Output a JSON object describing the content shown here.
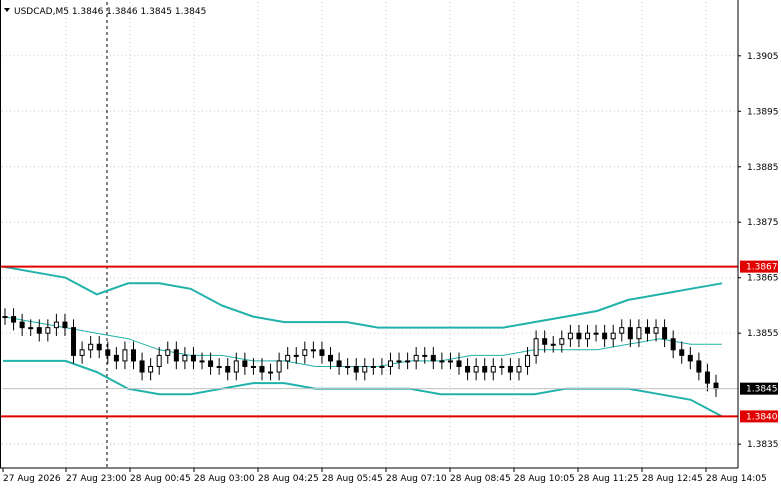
{
  "header": {
    "title": "USDCAD,M5  1.3846 1.3846 1.3845 1.3845"
  },
  "colors": {
    "background": "#ffffff",
    "grid": "#c8c8c8",
    "candles": "#000000",
    "bands": "#20b2aa",
    "level_lines": "#e00000",
    "price_badge": "#000000"
  },
  "chart_data": {
    "type": "line",
    "symbol": "USDCAD",
    "timeframe": "M5",
    "ohlc_header": [
      1.3846,
      1.3846,
      1.3845,
      1.3845
    ],
    "x_tick_labels": [
      "27 Aug 2026",
      "27 Aug 23:00",
      "28 Aug 00:45",
      "28 Aug 03:00",
      "28 Aug 04:25",
      "28 Aug 05:45",
      "28 Aug 07:10",
      "28 Aug 08:45",
      "28 Aug 10:05",
      "28 Aug 11:25",
      "28 Aug 12:45",
      "28 Aug 14:05"
    ],
    "y_tick_labels": [
      "1.3905",
      "1.3895",
      "1.3885",
      "1.3875",
      "1.3865",
      "1.3855",
      "1.3835"
    ],
    "ylim": [
      1.38307,
      1.39147
    ],
    "grid": true,
    "horizontal_levels": [
      {
        "label": "1.3867",
        "value": 1.3867,
        "color": "#e00000"
      },
      {
        "label": "1.3840",
        "value": 1.384,
        "color": "#e00000"
      }
    ],
    "current_price": {
      "label": "1.3845",
      "value": 1.3845
    },
    "series": [
      {
        "style": "candles",
        "values": [
          1.3858,
          1.3857,
          1.3856,
          1.3856,
          1.3855,
          1.3856,
          1.3857,
          1.3856,
          1.3851,
          1.3852,
          1.3853,
          1.3852,
          1.3851,
          1.385,
          1.3852,
          1.385,
          1.3848,
          1.3849,
          1.3851,
          1.3852,
          1.385,
          1.3851,
          1.385,
          1.385,
          1.3849,
          1.3849,
          1.3848,
          1.385,
          1.3849,
          1.3849,
          1.3848,
          1.3848,
          1.385,
          1.3851,
          1.3851,
          1.3852,
          1.3852,
          1.3851,
          1.385,
          1.3849,
          1.3849,
          1.3848,
          1.3849,
          1.3849,
          1.3849,
          1.385,
          1.385,
          1.385,
          1.3851,
          1.3851,
          1.385,
          1.385,
          1.385,
          1.3849,
          1.3848,
          1.3849,
          1.3848,
          1.3849,
          1.3849,
          1.3848,
          1.3849,
          1.3851,
          1.3854,
          1.3853,
          1.3853,
          1.3854,
          1.3855,
          1.3854,
          1.3855,
          1.3855,
          1.3854,
          1.3855,
          1.3856,
          1.3854,
          1.3856,
          1.3855,
          1.3856,
          1.3854,
          1.3852,
          1.3851,
          1.385,
          1.3848,
          1.3846,
          1.3845
        ]
      },
      {
        "style": "band",
        "name": "upper",
        "values": [
          1.3867,
          1.3866,
          1.3865,
          1.3862,
          1.3864,
          1.3864,
          1.3863,
          1.386,
          1.3858,
          1.3857,
          1.3857,
          1.3857,
          1.3856,
          1.3856,
          1.3856,
          1.3856,
          1.3856,
          1.3857,
          1.3858,
          1.3859,
          1.3861,
          1.3862,
          1.3863,
          1.3864
        ]
      },
      {
        "style": "band",
        "name": "middle",
        "values": [
          1.3858,
          1.3857,
          1.3856,
          1.3855,
          1.3854,
          1.3852,
          1.3851,
          1.3851,
          1.385,
          1.385,
          1.3849,
          1.3849,
          1.3849,
          1.385,
          1.385,
          1.3851,
          1.3851,
          1.3852,
          1.3852,
          1.3852,
          1.3853,
          1.3854,
          1.3853,
          1.3853
        ]
      },
      {
        "style": "band",
        "name": "lower",
        "values": [
          1.385,
          1.385,
          1.385,
          1.3848,
          1.3845,
          1.3844,
          1.3844,
          1.3845,
          1.3846,
          1.3846,
          1.3845,
          1.3845,
          1.3845,
          1.3845,
          1.3844,
          1.3844,
          1.3844,
          1.3844,
          1.3845,
          1.3845,
          1.3845,
          1.3844,
          1.3843,
          1.384
        ]
      }
    ]
  }
}
